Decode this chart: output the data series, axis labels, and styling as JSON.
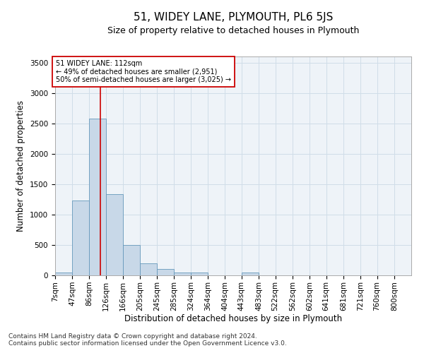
{
  "title": "51, WIDEY LANE, PLYMOUTH, PL6 5JS",
  "subtitle": "Size of property relative to detached houses in Plymouth",
  "xlabel": "Distribution of detached houses by size in Plymouth",
  "ylabel": "Number of detached properties",
  "bar_color": "#c8d8e8",
  "bar_edge_color": "#6699bb",
  "grid_color": "#d0dde8",
  "background_color": "#eef3f8",
  "annotation_text": "51 WIDEY LANE: 112sqm\n← 49% of detached houses are smaller (2,951)\n50% of semi-detached houses are larger (3,025) →",
  "annotation_box_color": "#ffffff",
  "annotation_border_color": "#cc0000",
  "vline_color": "#cc0000",
  "vline_x": 112,
  "footer1": "Contains HM Land Registry data © Crown copyright and database right 2024.",
  "footer2": "Contains public sector information licensed under the Open Government Licence v3.0.",
  "categories": [
    "7sqm",
    "47sqm",
    "86sqm",
    "126sqm",
    "166sqm",
    "205sqm",
    "245sqm",
    "285sqm",
    "324sqm",
    "364sqm",
    "404sqm",
    "443sqm",
    "483sqm",
    "522sqm",
    "562sqm",
    "602sqm",
    "641sqm",
    "681sqm",
    "721sqm",
    "760sqm",
    "800sqm"
  ],
  "bin_edges": [
    7,
    47,
    86,
    126,
    166,
    205,
    245,
    285,
    324,
    364,
    404,
    443,
    483,
    522,
    562,
    602,
    641,
    681,
    721,
    760,
    800,
    840
  ],
  "values": [
    50,
    1230,
    2580,
    1340,
    500,
    195,
    105,
    50,
    45,
    0,
    0,
    50,
    0,
    0,
    0,
    0,
    0,
    0,
    0,
    0,
    0
  ],
  "ylim": [
    0,
    3600
  ],
  "yticks": [
    0,
    500,
    1000,
    1500,
    2000,
    2500,
    3000,
    3500
  ],
  "title_fontsize": 11,
  "subtitle_fontsize": 9,
  "axis_label_fontsize": 8.5,
  "tick_fontsize": 7.5,
  "annotation_fontsize": 7,
  "footer_fontsize": 6.5
}
